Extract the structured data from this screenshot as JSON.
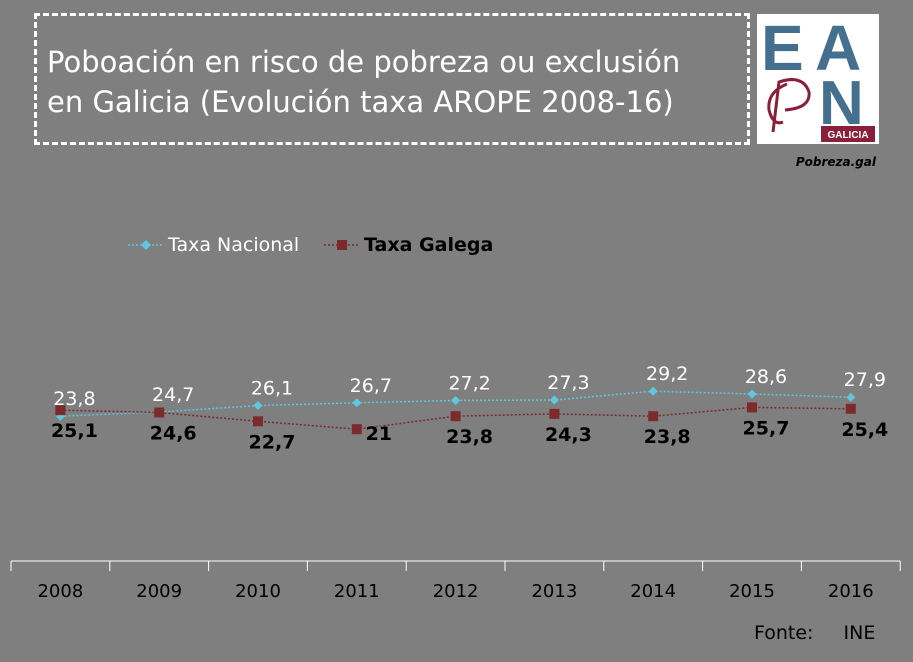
{
  "title": {
    "line1": "Poboación en risco de pobreza ou exclusión",
    "line2": "en Galicia (Evolución taxa AROPE 2008-16)"
  },
  "logo": {
    "letters": [
      "E",
      "A",
      "P",
      "N"
    ],
    "region": "GALICIA",
    "caption": "Pobreza.gal",
    "colors": {
      "blue": "#456f8e",
      "maroon": "#8a1f3a"
    }
  },
  "source": {
    "label": "Fonte:",
    "value": "INE"
  },
  "chart_data": {
    "type": "line",
    "categories": [
      "2008",
      "2009",
      "2010",
      "2011",
      "2012",
      "2013",
      "2014",
      "2015",
      "2016"
    ],
    "series": [
      {
        "name": "Taxa Nacional",
        "values": [
          23.8,
          24.7,
          26.1,
          26.7,
          27.2,
          27.3,
          29.2,
          28.6,
          27.9
        ],
        "labels": [
          "23,8",
          "24,7",
          "26,1",
          "26,7",
          "27,2",
          "27,3",
          "29,2",
          "28,6",
          "27,9"
        ],
        "color": "#5fc7e0",
        "marker": "diamond",
        "label_color": "#ffffff"
      },
      {
        "name": "Taxa Galega",
        "values": [
          25.1,
          24.6,
          22.7,
          21,
          23.8,
          24.3,
          23.8,
          25.7,
          25.4
        ],
        "labels": [
          "25,1",
          "24,6",
          "22,7",
          "21",
          "23,8",
          "24,3",
          "23,8",
          "25,7",
          "25,4"
        ],
        "color": "#7b2b2b",
        "marker": "square",
        "label_color": "#000000"
      }
    ],
    "legend_position": "top-left",
    "grid": false
  }
}
